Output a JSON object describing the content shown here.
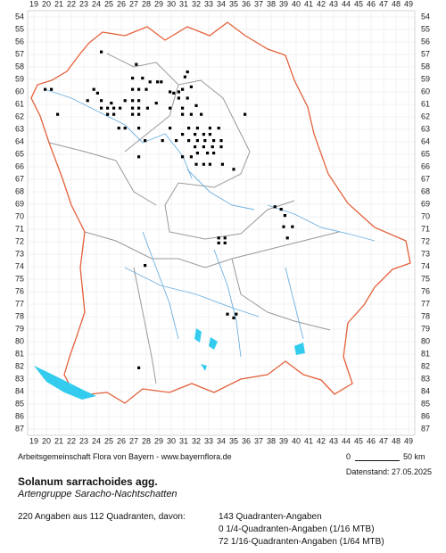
{
  "map": {
    "x_labels": [
      19,
      20,
      21,
      22,
      23,
      24,
      25,
      26,
      27,
      28,
      29,
      30,
      31,
      32,
      33,
      34,
      35,
      36,
      37,
      38,
      39,
      40,
      41,
      42,
      43,
      44,
      45,
      46,
      47,
      48,
      49
    ],
    "y_labels": [
      54,
      55,
      56,
      57,
      58,
      59,
      60,
      61,
      62,
      63,
      64,
      65,
      66,
      67,
      68,
      69,
      70,
      71,
      72,
      73,
      74,
      75,
      76,
      77,
      78,
      79,
      80,
      81,
      82,
      83,
      84,
      85,
      86,
      87
    ],
    "dots": [
      [
        24.4,
        56.8
      ],
      [
        27.2,
        57.8
      ],
      [
        26.9,
        58.9
      ],
      [
        27.7,
        58.9
      ],
      [
        28.3,
        59.2
      ],
      [
        28.9,
        59.2
      ],
      [
        29.2,
        59.2
      ],
      [
        31.1,
        58.8
      ],
      [
        31.3,
        58.4
      ],
      [
        19.9,
        59.8
      ],
      [
        20.4,
        59.8
      ],
      [
        23.8,
        59.8
      ],
      [
        24.1,
        60.1
      ],
      [
        26.9,
        59.8
      ],
      [
        27.4,
        59.8
      ],
      [
        28.0,
        59.8
      ],
      [
        29.9,
        60.0
      ],
      [
        30.2,
        60.1
      ],
      [
        30.6,
        60.0
      ],
      [
        30.9,
        59.8
      ],
      [
        31.6,
        59.6
      ],
      [
        23.3,
        60.7
      ],
      [
        24.4,
        60.7
      ],
      [
        25.2,
        60.9
      ],
      [
        26.3,
        60.7
      ],
      [
        26.9,
        60.7
      ],
      [
        27.4,
        60.7
      ],
      [
        28.8,
        60.9
      ],
      [
        30.6,
        60.5
      ],
      [
        31.3,
        60.5
      ],
      [
        24.4,
        61.3
      ],
      [
        24.9,
        61.3
      ],
      [
        25.4,
        61.3
      ],
      [
        25.9,
        61.3
      ],
      [
        26.9,
        61.3
      ],
      [
        27.4,
        61.3
      ],
      [
        28.1,
        61.3
      ],
      [
        29.9,
        61.3
      ],
      [
        30.9,
        61.3
      ],
      [
        32.0,
        61.1
      ],
      [
        35.9,
        61.8
      ],
      [
        20.9,
        61.8
      ],
      [
        24.9,
        61.8
      ],
      [
        25.4,
        61.8
      ],
      [
        26.9,
        61.8
      ],
      [
        27.4,
        61.8
      ],
      [
        30.9,
        61.8
      ],
      [
        31.6,
        61.8
      ],
      [
        32.4,
        61.8
      ],
      [
        25.8,
        62.9
      ],
      [
        26.3,
        62.9
      ],
      [
        27.4,
        62.9
      ],
      [
        29.9,
        62.9
      ],
      [
        31.4,
        62.9
      ],
      [
        32.1,
        62.9
      ],
      [
        33.1,
        62.9
      ],
      [
        33.8,
        62.9
      ],
      [
        30.9,
        63.4
      ],
      [
        31.9,
        63.4
      ],
      [
        32.6,
        63.4
      ],
      [
        33.1,
        63.4
      ],
      [
        27.9,
        63.9
      ],
      [
        29.3,
        63.9
      ],
      [
        30.4,
        63.9
      ],
      [
        31.4,
        63.9
      ],
      [
        32.1,
        63.9
      ],
      [
        32.7,
        63.9
      ],
      [
        33.4,
        63.9
      ],
      [
        34.0,
        63.9
      ],
      [
        31.9,
        64.4
      ],
      [
        32.6,
        64.4
      ],
      [
        33.3,
        64.4
      ],
      [
        34.0,
        64.4
      ],
      [
        27.4,
        65.2
      ],
      [
        30.9,
        65.2
      ],
      [
        31.6,
        65.2
      ],
      [
        32.1,
        64.9
      ],
      [
        32.9,
        64.9
      ],
      [
        33.4,
        64.9
      ],
      [
        32.0,
        65.8
      ],
      [
        32.6,
        65.8
      ],
      [
        33.1,
        65.8
      ],
      [
        34.1,
        65.8
      ],
      [
        35.0,
        66.2
      ],
      [
        38.3,
        69.2
      ],
      [
        38.8,
        69.4
      ],
      [
        39.1,
        69.9
      ],
      [
        39.0,
        70.8
      ],
      [
        39.7,
        70.8
      ],
      [
        39.3,
        71.7
      ],
      [
        33.8,
        71.7
      ],
      [
        34.3,
        71.7
      ],
      [
        33.8,
        72.1
      ],
      [
        34.3,
        72.1
      ],
      [
        27.9,
        73.9
      ],
      [
        34.5,
        77.8
      ],
      [
        35.0,
        78.1
      ],
      [
        35.2,
        77.8
      ],
      [
        27.4,
        82.1
      ]
    ],
    "footer": {
      "credit": "Arbeitsgemeinschaft Flora von Bayern - www.bayernflora.de",
      "scale_start": "0",
      "scale_end": "50 km",
      "date": "Datenstand: 27.05.2025"
    },
    "title": "Solanum sarrachoides agg.",
    "subtitle": "Artengruppe Saracho-Nachtschatten",
    "summary": "220 Angaben aus 112 Quadranten, davon:",
    "counts": [
      "143 Quadranten-Angaben",
      "0 1/4-Quadranten-Angaben (1/16 MTB)",
      "72 1/16-Quadranten-Angaben (1/64 MTB)"
    ]
  }
}
